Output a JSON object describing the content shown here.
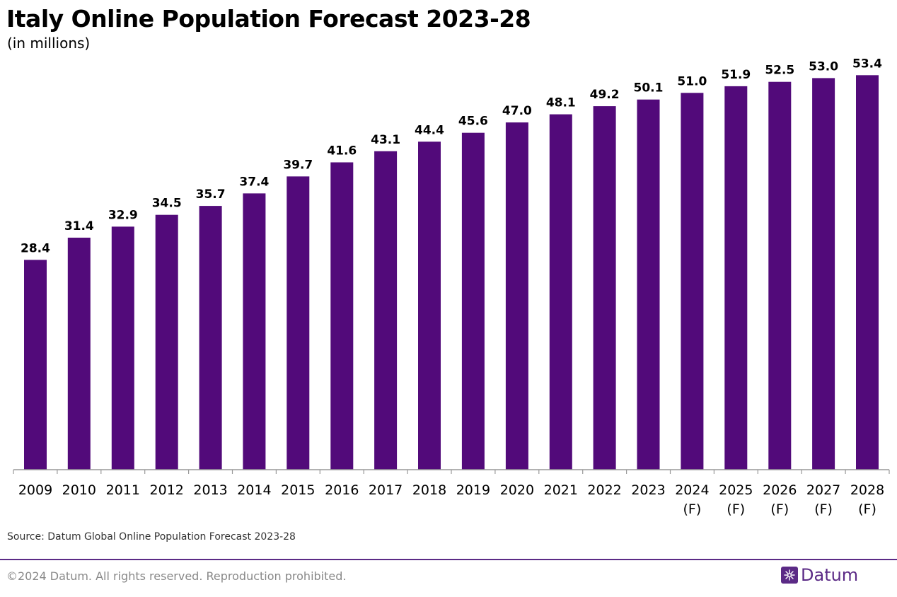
{
  "header": {
    "title": "Italy Online Population Forecast 2023-28",
    "subtitle": "(in millions)"
  },
  "chart_data": {
    "type": "bar",
    "categories": [
      [
        "2009"
      ],
      [
        "2010"
      ],
      [
        "2011"
      ],
      [
        "2012"
      ],
      [
        "2013"
      ],
      [
        "2014"
      ],
      [
        "2015"
      ],
      [
        "2016"
      ],
      [
        "2017"
      ],
      [
        "2018"
      ],
      [
        "2019"
      ],
      [
        "2020"
      ],
      [
        "2021"
      ],
      [
        "2022"
      ],
      [
        "2023"
      ],
      [
        "2024",
        "(F)"
      ],
      [
        "2025",
        "(F)"
      ],
      [
        "2026",
        "(F)"
      ],
      [
        "2027",
        "(F)"
      ],
      [
        "2028",
        "(F)"
      ]
    ],
    "values": [
      28.4,
      31.4,
      32.9,
      34.5,
      35.7,
      37.4,
      39.7,
      41.6,
      43.1,
      44.4,
      45.6,
      47.0,
      48.1,
      49.2,
      50.1,
      51.0,
      51.9,
      52.5,
      53.0,
      53.4
    ],
    "value_labels": [
      "28.4",
      "31.4",
      "32.9",
      "34.5",
      "35.7",
      "37.4",
      "39.7",
      "41.6",
      "43.1",
      "44.4",
      "45.6",
      "47.0",
      "48.1",
      "49.2",
      "50.1",
      "51.0",
      "51.9",
      "52.5",
      "53.0",
      "53.4"
    ],
    "ylim": [
      0,
      54
    ],
    "grid": false,
    "colors": {
      "bar": "#520a7a",
      "axis": "#999999"
    }
  },
  "footer": {
    "source": "Source: Datum Global Online Population Forecast 2023-28",
    "copyright": "©2024 Datum. All rights reserved. Reproduction prohibited.",
    "brand": "Datum",
    "brand_icon": "datum-logo-icon",
    "brand_color": "#5b2a86"
  }
}
